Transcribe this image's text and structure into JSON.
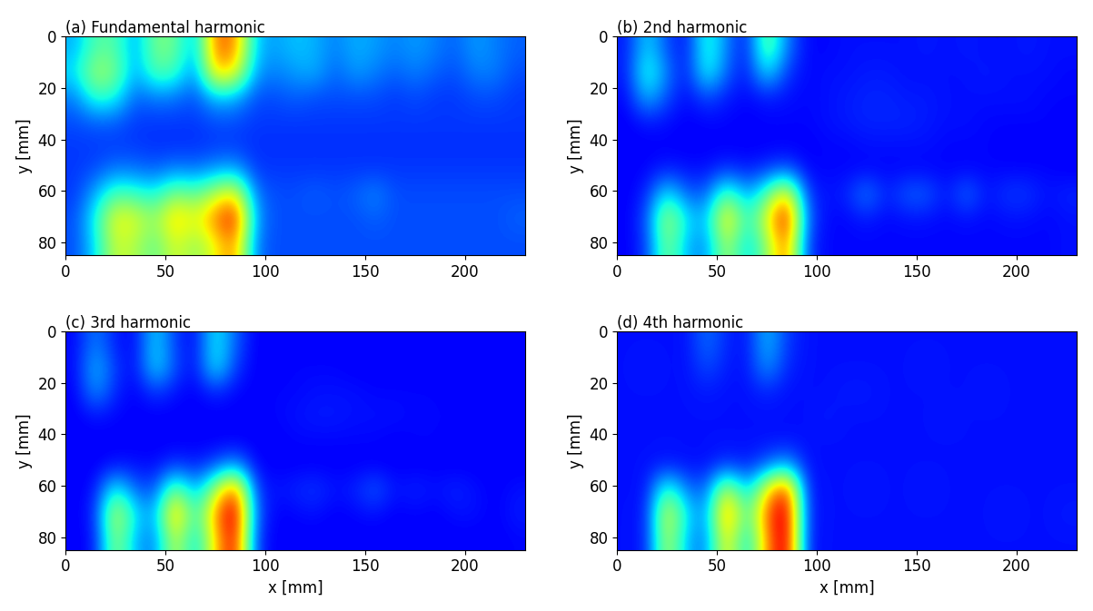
{
  "chart_data": [
    {
      "type": "heatmap",
      "title": "(a) Fundamental harmonic",
      "ylabel": "y [mm]",
      "xlim": [
        0,
        230
      ],
      "ylim": [
        85,
        0
      ],
      "xticks": [
        0,
        50,
        100,
        150,
        200
      ],
      "yticks": [
        0,
        20,
        40,
        60,
        80
      ],
      "clim": [
        0,
        1
      ],
      "cells": [
        [
          0.3,
          0.45,
          0.45,
          0.28,
          0.5,
          0.48,
          0.28,
          0.8,
          0.78,
          0.32,
          0.28,
          0.32,
          0.3,
          0.25,
          0.3,
          0.28,
          0.25,
          0.28,
          0.25,
          0.22,
          0.28,
          0.25,
          0.22
        ],
        [
          0.35,
          0.55,
          0.5,
          0.28,
          0.45,
          0.42,
          0.25,
          0.7,
          0.65,
          0.28,
          0.25,
          0.28,
          0.3,
          0.22,
          0.28,
          0.25,
          0.22,
          0.25,
          0.22,
          0.2,
          0.25,
          0.25,
          0.2
        ],
        [
          0.25,
          0.42,
          0.38,
          0.22,
          0.25,
          0.24,
          0.2,
          0.32,
          0.3,
          0.2,
          0.2,
          0.22,
          0.2,
          0.2,
          0.2,
          0.2,
          0.18,
          0.2,
          0.18,
          0.18,
          0.2,
          0.2,
          0.18
        ],
        [
          0.2,
          0.22,
          0.22,
          0.18,
          0.18,
          0.18,
          0.18,
          0.2,
          0.2,
          0.18,
          0.18,
          0.18,
          0.18,
          0.18,
          0.18,
          0.18,
          0.18,
          0.18,
          0.18,
          0.18,
          0.18,
          0.18,
          0.18
        ],
        [
          0.18,
          0.18,
          0.18,
          0.18,
          0.17,
          0.17,
          0.17,
          0.18,
          0.18,
          0.17,
          0.17,
          0.17,
          0.17,
          0.17,
          0.17,
          0.17,
          0.17,
          0.17,
          0.17,
          0.17,
          0.17,
          0.17,
          0.17
        ],
        [
          0.18,
          0.2,
          0.25,
          0.24,
          0.22,
          0.26,
          0.24,
          0.28,
          0.3,
          0.18,
          0.18,
          0.18,
          0.18,
          0.18,
          0.18,
          0.18,
          0.18,
          0.18,
          0.18,
          0.18,
          0.18,
          0.18,
          0.18
        ],
        [
          0.18,
          0.3,
          0.45,
          0.42,
          0.38,
          0.52,
          0.46,
          0.58,
          0.68,
          0.24,
          0.2,
          0.2,
          0.22,
          0.2,
          0.22,
          0.26,
          0.2,
          0.2,
          0.2,
          0.2,
          0.2,
          0.2,
          0.2
        ],
        [
          0.2,
          0.38,
          0.65,
          0.62,
          0.52,
          0.72,
          0.62,
          0.78,
          0.92,
          0.28,
          0.2,
          0.2,
          0.2,
          0.2,
          0.2,
          0.22,
          0.2,
          0.2,
          0.2,
          0.2,
          0.2,
          0.2,
          0.22
        ],
        [
          0.2,
          0.35,
          0.6,
          0.56,
          0.46,
          0.62,
          0.52,
          0.64,
          0.78,
          0.24,
          0.2,
          0.2,
          0.2,
          0.2,
          0.2,
          0.2,
          0.2,
          0.2,
          0.2,
          0.2,
          0.2,
          0.2,
          0.2
        ]
      ]
    },
    {
      "type": "heatmap",
      "title": "(b) 2nd harmonic",
      "ylabel": "y [mm]",
      "xlim": [
        0,
        230
      ],
      "ylim": [
        85,
        0
      ],
      "xticks": [
        0,
        50,
        100,
        150,
        200
      ],
      "yticks": [
        0,
        20,
        40,
        60,
        80
      ],
      "clim": [
        0,
        1
      ],
      "cells": [
        [
          0.15,
          0.35,
          0.2,
          0.14,
          0.42,
          0.25,
          0.14,
          0.5,
          0.25,
          0.13,
          0.13,
          0.14,
          0.14,
          0.14,
          0.14,
          0.15,
          0.14,
          0.15,
          0.14,
          0.14,
          0.15,
          0.14,
          0.14
        ],
        [
          0.15,
          0.42,
          0.25,
          0.14,
          0.4,
          0.22,
          0.14,
          0.36,
          0.18,
          0.13,
          0.14,
          0.14,
          0.15,
          0.15,
          0.14,
          0.14,
          0.14,
          0.14,
          0.15,
          0.14,
          0.14,
          0.14,
          0.13
        ],
        [
          0.13,
          0.32,
          0.2,
          0.13,
          0.2,
          0.15,
          0.13,
          0.15,
          0.14,
          0.13,
          0.14,
          0.15,
          0.16,
          0.16,
          0.15,
          0.15,
          0.14,
          0.14,
          0.14,
          0.14,
          0.14,
          0.13,
          0.13
        ],
        [
          0.12,
          0.15,
          0.14,
          0.12,
          0.13,
          0.13,
          0.12,
          0.13,
          0.13,
          0.13,
          0.14,
          0.15,
          0.16,
          0.16,
          0.16,
          0.15,
          0.14,
          0.14,
          0.13,
          0.13,
          0.13,
          0.13,
          0.12
        ],
        [
          0.12,
          0.12,
          0.12,
          0.12,
          0.12,
          0.12,
          0.12,
          0.12,
          0.12,
          0.12,
          0.13,
          0.13,
          0.14,
          0.14,
          0.14,
          0.14,
          0.13,
          0.13,
          0.13,
          0.12,
          0.12,
          0.12,
          0.12
        ],
        [
          0.12,
          0.13,
          0.16,
          0.14,
          0.14,
          0.18,
          0.15,
          0.18,
          0.22,
          0.13,
          0.13,
          0.13,
          0.13,
          0.13,
          0.13,
          0.13,
          0.13,
          0.13,
          0.13,
          0.13,
          0.13,
          0.13,
          0.12
        ],
        [
          0.12,
          0.16,
          0.38,
          0.22,
          0.22,
          0.48,
          0.28,
          0.45,
          0.72,
          0.18,
          0.14,
          0.16,
          0.26,
          0.15,
          0.22,
          0.22,
          0.14,
          0.24,
          0.14,
          0.18,
          0.18,
          0.14,
          0.16
        ],
        [
          0.12,
          0.2,
          0.58,
          0.35,
          0.3,
          0.72,
          0.38,
          0.62,
          0.95,
          0.22,
          0.13,
          0.13,
          0.15,
          0.13,
          0.14,
          0.14,
          0.13,
          0.14,
          0.13,
          0.14,
          0.14,
          0.13,
          0.14
        ],
        [
          0.12,
          0.18,
          0.52,
          0.3,
          0.26,
          0.58,
          0.32,
          0.52,
          0.82,
          0.18,
          0.13,
          0.13,
          0.13,
          0.13,
          0.13,
          0.13,
          0.13,
          0.13,
          0.13,
          0.13,
          0.13,
          0.13,
          0.14
        ]
      ]
    },
    {
      "type": "heatmap",
      "title": "(c) 3rd harmonic",
      "xlabel": "x [mm]",
      "ylabel": "y [mm]",
      "xlim": [
        0,
        230
      ],
      "ylim": [
        85,
        0
      ],
      "xticks": [
        0,
        50,
        100,
        150,
        200
      ],
      "yticks": [
        0,
        20,
        40,
        60,
        80
      ],
      "clim": [
        0,
        1
      ],
      "cells": [
        [
          0.13,
          0.26,
          0.15,
          0.13,
          0.35,
          0.18,
          0.13,
          0.38,
          0.22,
          0.12,
          0.12,
          0.12,
          0.12,
          0.12,
          0.12,
          0.12,
          0.12,
          0.12,
          0.12,
          0.12,
          0.12,
          0.12,
          0.12
        ],
        [
          0.13,
          0.32,
          0.18,
          0.13,
          0.36,
          0.2,
          0.13,
          0.38,
          0.18,
          0.12,
          0.12,
          0.13,
          0.13,
          0.13,
          0.12,
          0.12,
          0.12,
          0.12,
          0.12,
          0.12,
          0.12,
          0.12,
          0.12
        ],
        [
          0.12,
          0.28,
          0.16,
          0.12,
          0.18,
          0.14,
          0.12,
          0.16,
          0.13,
          0.12,
          0.13,
          0.13,
          0.14,
          0.14,
          0.14,
          0.13,
          0.13,
          0.13,
          0.13,
          0.12,
          0.12,
          0.12,
          0.12
        ],
        [
          0.12,
          0.14,
          0.13,
          0.12,
          0.12,
          0.12,
          0.12,
          0.12,
          0.12,
          0.12,
          0.13,
          0.14,
          0.15,
          0.15,
          0.14,
          0.14,
          0.14,
          0.13,
          0.13,
          0.13,
          0.12,
          0.12,
          0.12
        ],
        [
          0.12,
          0.12,
          0.12,
          0.12,
          0.12,
          0.12,
          0.12,
          0.12,
          0.12,
          0.12,
          0.12,
          0.13,
          0.13,
          0.13,
          0.13,
          0.13,
          0.12,
          0.13,
          0.13,
          0.12,
          0.12,
          0.12,
          0.12
        ],
        [
          0.12,
          0.12,
          0.14,
          0.14,
          0.13,
          0.18,
          0.15,
          0.2,
          0.28,
          0.13,
          0.12,
          0.12,
          0.12,
          0.12,
          0.12,
          0.12,
          0.12,
          0.12,
          0.12,
          0.12,
          0.12,
          0.12,
          0.12
        ],
        [
          0.12,
          0.14,
          0.4,
          0.22,
          0.2,
          0.52,
          0.28,
          0.55,
          0.85,
          0.18,
          0.14,
          0.16,
          0.18,
          0.14,
          0.16,
          0.22,
          0.14,
          0.16,
          0.14,
          0.16,
          0.14,
          0.12,
          0.14
        ],
        [
          0.12,
          0.16,
          0.62,
          0.35,
          0.28,
          0.78,
          0.38,
          0.75,
          1.0,
          0.22,
          0.12,
          0.13,
          0.14,
          0.12,
          0.13,
          0.14,
          0.12,
          0.13,
          0.12,
          0.14,
          0.14,
          0.12,
          0.15
        ],
        [
          0.12,
          0.14,
          0.55,
          0.3,
          0.24,
          0.62,
          0.32,
          0.68,
          0.95,
          0.18,
          0.12,
          0.12,
          0.12,
          0.12,
          0.12,
          0.12,
          0.12,
          0.12,
          0.12,
          0.12,
          0.12,
          0.12,
          0.13
        ]
      ]
    },
    {
      "type": "heatmap",
      "title": "(d) 4th harmonic",
      "xlabel": "x [mm]",
      "ylabel": "y [mm]",
      "xlim": [
        0,
        230
      ],
      "ylim": [
        85,
        0
      ],
      "xticks": [
        0,
        50,
        100,
        150,
        200
      ],
      "yticks": [
        0,
        20,
        40,
        60,
        80
      ],
      "clim": [
        0,
        1
      ],
      "cells": [
        [
          0.14,
          0.14,
          0.14,
          0.14,
          0.24,
          0.16,
          0.14,
          0.32,
          0.18,
          0.14,
          0.14,
          0.14,
          0.14,
          0.14,
          0.14,
          0.14,
          0.14,
          0.14,
          0.14,
          0.14,
          0.14,
          0.14,
          0.14
        ],
        [
          0.14,
          0.15,
          0.14,
          0.14,
          0.2,
          0.15,
          0.14,
          0.28,
          0.16,
          0.14,
          0.14,
          0.14,
          0.14,
          0.14,
          0.14,
          0.15,
          0.14,
          0.14,
          0.14,
          0.14,
          0.14,
          0.14,
          0.14
        ],
        [
          0.14,
          0.14,
          0.14,
          0.14,
          0.15,
          0.14,
          0.14,
          0.16,
          0.14,
          0.14,
          0.14,
          0.15,
          0.15,
          0.14,
          0.14,
          0.14,
          0.14,
          0.14,
          0.15,
          0.14,
          0.14,
          0.14,
          0.14
        ],
        [
          0.14,
          0.14,
          0.14,
          0.14,
          0.14,
          0.14,
          0.14,
          0.14,
          0.14,
          0.14,
          0.15,
          0.14,
          0.14,
          0.14,
          0.14,
          0.14,
          0.15,
          0.14,
          0.14,
          0.14,
          0.14,
          0.14,
          0.14
        ],
        [
          0.14,
          0.14,
          0.14,
          0.14,
          0.14,
          0.14,
          0.14,
          0.14,
          0.14,
          0.14,
          0.14,
          0.14,
          0.14,
          0.14,
          0.14,
          0.14,
          0.14,
          0.14,
          0.14,
          0.14,
          0.14,
          0.14,
          0.14
        ],
        [
          0.14,
          0.14,
          0.15,
          0.14,
          0.14,
          0.18,
          0.15,
          0.22,
          0.3,
          0.14,
          0.14,
          0.14,
          0.14,
          0.14,
          0.14,
          0.14,
          0.14,
          0.14,
          0.14,
          0.14,
          0.14,
          0.14,
          0.14
        ],
        [
          0.14,
          0.14,
          0.45,
          0.24,
          0.22,
          0.62,
          0.3,
          0.65,
          0.9,
          0.15,
          0.14,
          0.14,
          0.15,
          0.14,
          0.14,
          0.15,
          0.14,
          0.14,
          0.14,
          0.14,
          0.14,
          0.14,
          0.14
        ],
        [
          0.14,
          0.15,
          0.65,
          0.35,
          0.26,
          0.82,
          0.4,
          0.8,
          1.0,
          0.16,
          0.14,
          0.14,
          0.14,
          0.14,
          0.14,
          0.14,
          0.14,
          0.14,
          0.14,
          0.15,
          0.14,
          0.14,
          0.15
        ],
        [
          0.14,
          0.15,
          0.6,
          0.3,
          0.24,
          0.7,
          0.32,
          0.75,
          1.0,
          0.15,
          0.14,
          0.14,
          0.14,
          0.14,
          0.14,
          0.14,
          0.14,
          0.14,
          0.14,
          0.14,
          0.14,
          0.14,
          0.14
        ]
      ]
    }
  ]
}
